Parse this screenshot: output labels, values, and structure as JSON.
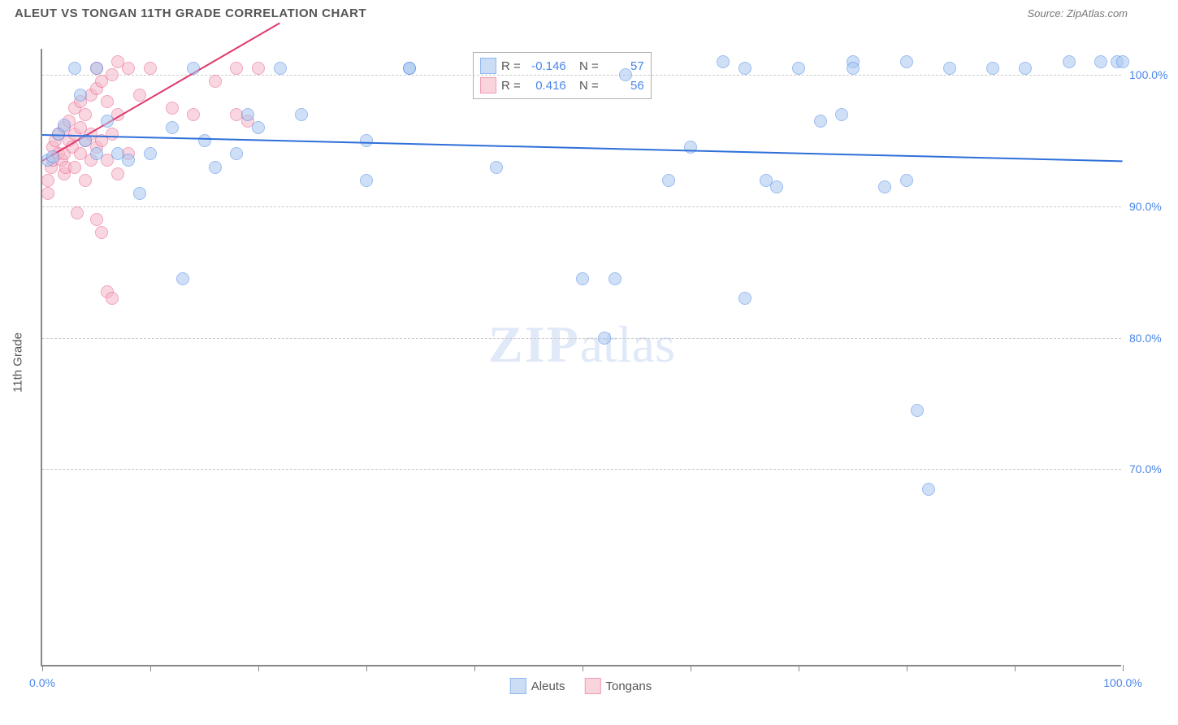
{
  "header": {
    "title": "ALEUT VS TONGAN 11TH GRADE CORRELATION CHART",
    "source": "Source: ZipAtlas.com"
  },
  "watermark": {
    "bold": "ZIP",
    "rest": "atlas"
  },
  "yaxis": {
    "title": "11th Grade",
    "min": 55,
    "max": 102,
    "ticks": [
      70,
      80,
      90,
      100
    ],
    "tick_labels": [
      "70.0%",
      "80.0%",
      "90.0%",
      "100.0%"
    ],
    "label_color": "#4a86e8",
    "grid_color": "#cccccc"
  },
  "xaxis": {
    "min": 0,
    "max": 100,
    "ticks": [
      0,
      10,
      20,
      30,
      40,
      50,
      60,
      70,
      80,
      90,
      100
    ],
    "labels": {
      "0": "0.0%",
      "100": "100.0%"
    },
    "label_color": "#4a86e8"
  },
  "series": {
    "aleuts": {
      "label": "Aleuts",
      "color_fill": "#a8c8f0",
      "color_stroke": "#4a86e8",
      "marker_size": 16,
      "R": "-0.146",
      "N": "57",
      "trend": {
        "x1": 0,
        "y1": 95.5,
        "x2": 100,
        "y2": 93.5,
        "color": "#2e6fd9",
        "width": 2
      },
      "points": [
        [
          0.5,
          93.5
        ],
        [
          1,
          93.8
        ],
        [
          1.5,
          95.5
        ],
        [
          2,
          96.2
        ],
        [
          3,
          100.5
        ],
        [
          3.5,
          98.5
        ],
        [
          4,
          95
        ],
        [
          5,
          94
        ],
        [
          5,
          100.5
        ],
        [
          6,
          96.5
        ],
        [
          7,
          94
        ],
        [
          8,
          93.5
        ],
        [
          9,
          91
        ],
        [
          10,
          94
        ],
        [
          12,
          96
        ],
        [
          13,
          84.5
        ],
        [
          14,
          100.5
        ],
        [
          15,
          95
        ],
        [
          16,
          93
        ],
        [
          18,
          94
        ],
        [
          19,
          97
        ],
        [
          20,
          96
        ],
        [
          22,
          100.5
        ],
        [
          24,
          97
        ],
        [
          30,
          92
        ],
        [
          30,
          95
        ],
        [
          34,
          100.5
        ],
        [
          34,
          100.5
        ],
        [
          42,
          93
        ],
        [
          50,
          84.5
        ],
        [
          52,
          80
        ],
        [
          53,
          84.5
        ],
        [
          54,
          100
        ],
        [
          58,
          92
        ],
        [
          60,
          94.5
        ],
        [
          63,
          101
        ],
        [
          65,
          100.5
        ],
        [
          65,
          83
        ],
        [
          67,
          92
        ],
        [
          68,
          91.5
        ],
        [
          70,
          100.5
        ],
        [
          72,
          96.5
        ],
        [
          74,
          97
        ],
        [
          75,
          101
        ],
        [
          75,
          100.5
        ],
        [
          78,
          91.5
        ],
        [
          80,
          92
        ],
        [
          80,
          101
        ],
        [
          81,
          74.5
        ],
        [
          82,
          68.5
        ],
        [
          84,
          100.5
        ],
        [
          88,
          100.5
        ],
        [
          91,
          100.5
        ],
        [
          95,
          101
        ],
        [
          98,
          101
        ],
        [
          99.5,
          101
        ],
        [
          100,
          101
        ]
      ]
    },
    "tongans": {
      "label": "Tongans",
      "color_fill": "#f5b8c8",
      "color_stroke": "#e85a8a",
      "marker_size": 16,
      "R": "0.416",
      "N": "56",
      "trend": {
        "x1": 0,
        "y1": 93.5,
        "x2": 22,
        "y2": 104,
        "color": "#e03a6a",
        "width": 2
      },
      "points": [
        [
          0.5,
          91
        ],
        [
          0.5,
          92
        ],
        [
          0.8,
          93
        ],
        [
          1,
          93.5
        ],
        [
          1,
          94.5
        ],
        [
          1.2,
          95
        ],
        [
          1.5,
          94
        ],
        [
          1.5,
          95.5
        ],
        [
          1.8,
          93.5
        ],
        [
          2,
          92.5
        ],
        [
          2,
          94
        ],
        [
          2,
          96
        ],
        [
          2.2,
          93
        ],
        [
          2.5,
          95
        ],
        [
          2.5,
          96.5
        ],
        [
          2.8,
          94.5
        ],
        [
          3,
          93
        ],
        [
          3,
          95.5
        ],
        [
          3,
          97.5
        ],
        [
          3.2,
          89.5
        ],
        [
          3.5,
          94
        ],
        [
          3.5,
          96
        ],
        [
          3.5,
          98
        ],
        [
          4,
          92
        ],
        [
          4,
          95
        ],
        [
          4,
          97
        ],
        [
          4.5,
          93.5
        ],
        [
          4.5,
          95.5
        ],
        [
          4.5,
          98.5
        ],
        [
          5,
          89
        ],
        [
          5,
          94.5
        ],
        [
          5,
          99
        ],
        [
          5,
          100.5
        ],
        [
          5.5,
          88
        ],
        [
          5.5,
          95
        ],
        [
          5.5,
          99.5
        ],
        [
          6,
          83.5
        ],
        [
          6,
          93.5
        ],
        [
          6,
          98
        ],
        [
          6.5,
          83
        ],
        [
          6.5,
          95.5
        ],
        [
          6.5,
          100
        ],
        [
          7,
          92.5
        ],
        [
          7,
          97
        ],
        [
          7,
          101
        ],
        [
          8,
          94
        ],
        [
          8,
          100.5
        ],
        [
          9,
          98.5
        ],
        [
          10,
          100.5
        ],
        [
          12,
          97.5
        ],
        [
          14,
          97
        ],
        [
          16,
          99.5
        ],
        [
          18,
          97
        ],
        [
          18,
          100.5
        ],
        [
          19,
          96.5
        ],
        [
          20,
          100.5
        ]
      ]
    }
  },
  "stats_box": {
    "rows": [
      {
        "swatch_fill": "#a8c8f0",
        "swatch_stroke": "#4a86e8",
        "R_label": "R =",
        "R": "-0.146",
        "N_label": "N =",
        "N": "57"
      },
      {
        "swatch_fill": "#f5b8c8",
        "swatch_stroke": "#e85a8a",
        "R_label": "R =",
        "R": "0.416",
        "N_label": "N =",
        "N": "56"
      }
    ]
  },
  "legend": {
    "items": [
      {
        "label": "Aleuts",
        "fill": "#a8c8f0",
        "stroke": "#4a86e8"
      },
      {
        "label": "Tongans",
        "fill": "#f5b8c8",
        "stroke": "#e85a8a"
      }
    ]
  }
}
